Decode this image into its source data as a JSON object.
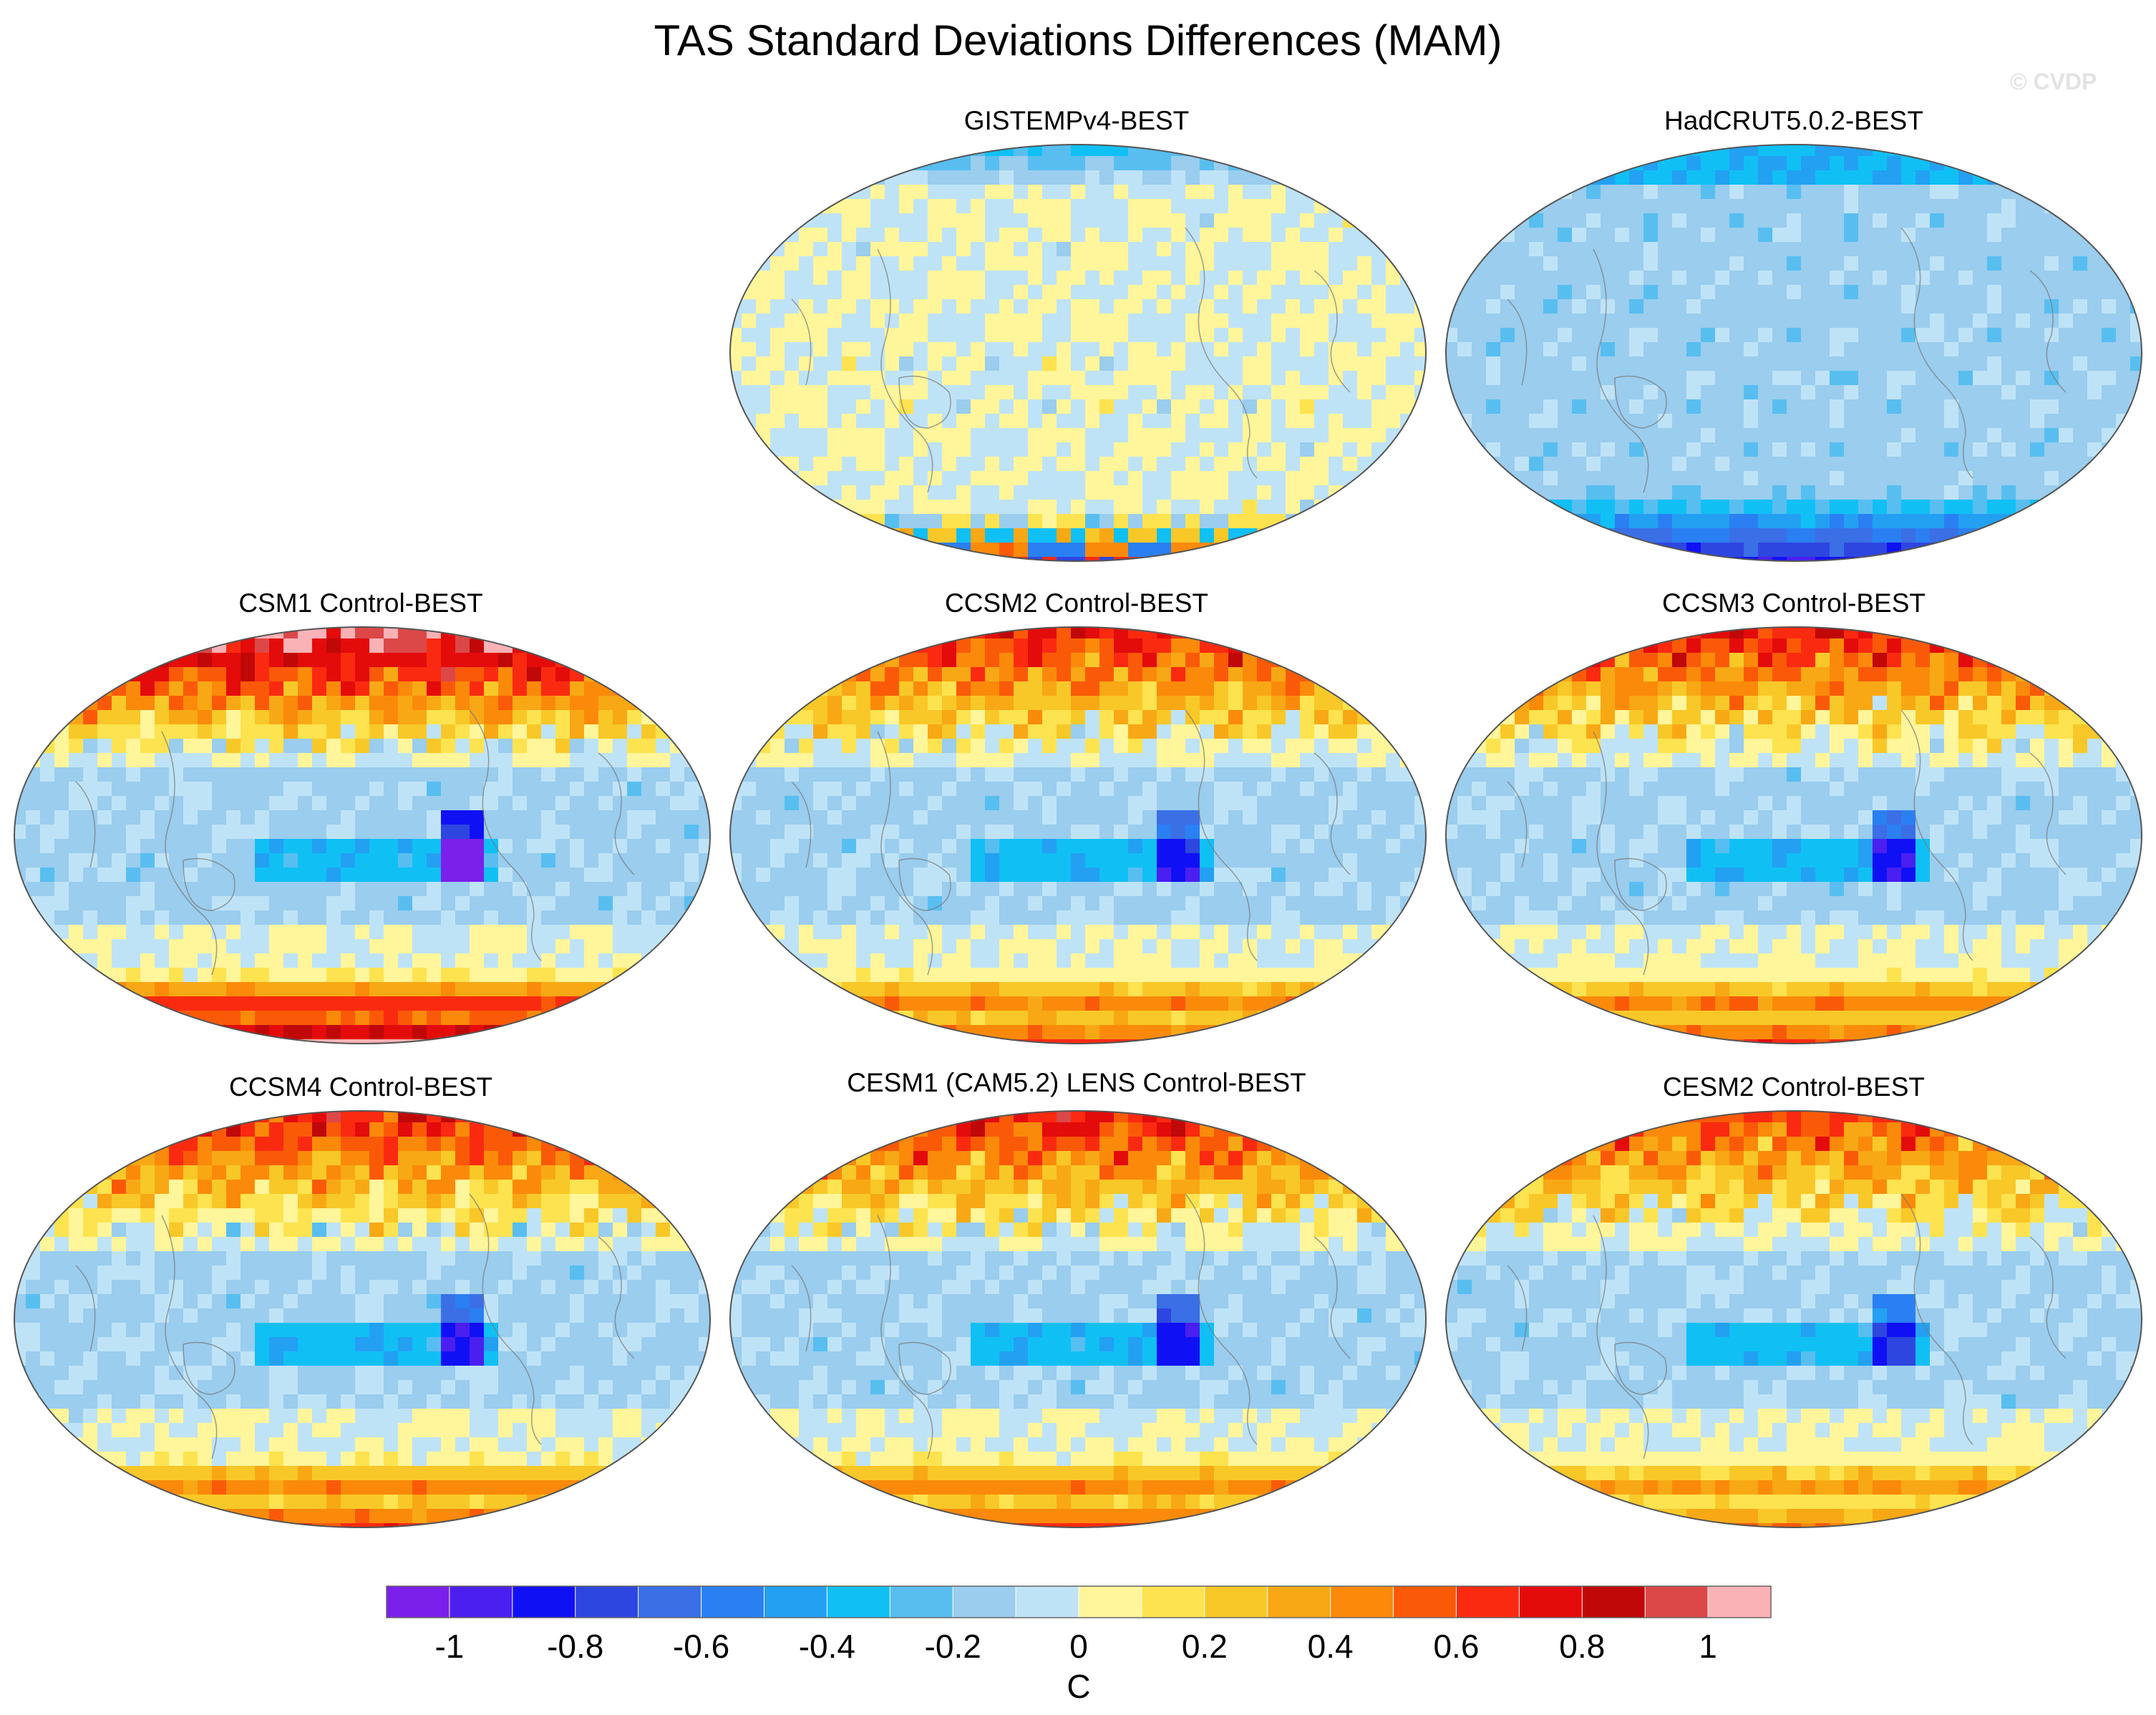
{
  "title": "TAS Standard Deviations Differences (MAM)",
  "watermark": "© CVDP",
  "panels": [
    {
      "label": "GISTEMPv4-BEST",
      "pattern": "obs1"
    },
    {
      "label": "HadCRUT5.0.2-BEST",
      "pattern": "obs2"
    },
    {
      "label": "CSM1 Control-BEST",
      "pattern": "model_strong"
    },
    {
      "label": "CCSM2 Control-BEST",
      "pattern": "model"
    },
    {
      "label": "CCSM3 Control-BEST",
      "pattern": "model"
    },
    {
      "label": "CCSM4 Control-BEST",
      "pattern": "model"
    },
    {
      "label": "CESM1 (CAM5.2) LENS Control-BEST",
      "pattern": "model"
    },
    {
      "label": "CESM2 Control-BEST",
      "pattern": "model_weak"
    }
  ],
  "chart_data": {
    "type": "heatmap",
    "title": "TAS Standard Deviations Differences (MAM)",
    "projection": "Robinson-like global map, Pacific-centered",
    "colorbar": {
      "label": "C",
      "levels": [
        -1.1,
        -1.0,
        -0.9,
        -0.8,
        -0.7,
        -0.6,
        -0.5,
        -0.4,
        -0.3,
        -0.2,
        -0.1,
        0,
        0.1,
        0.2,
        0.3,
        0.4,
        0.5,
        0.6,
        0.7,
        0.8,
        0.9,
        1.0,
        1.1
      ],
      "colors": [
        "#7b1fea",
        "#4a1ff0",
        "#1010f5",
        "#2e46e0",
        "#3a6fe6",
        "#2a80f2",
        "#23a0f2",
        "#10c0f5",
        "#58bef0",
        "#9acdee",
        "#bfe3f6",
        "#fff59a",
        "#fde34f",
        "#f8c828",
        "#f8a815",
        "#fb8a0a",
        "#fa5a08",
        "#fa2a10",
        "#e40b0b",
        "#c00808",
        "#dc4848",
        "#fbb2b6"
      ],
      "tick_values": [
        -1,
        -0.8,
        -0.6,
        -0.4,
        -0.2,
        0,
        0.2,
        0.4,
        0.6,
        0.8,
        1
      ],
      "tick_labels": [
        "-1",
        "-0.8",
        "-0.6",
        "-0.4",
        "-0.2",
        "0",
        "0.2",
        "0.4",
        "0.6",
        "0.8",
        "1"
      ]
    }
  }
}
